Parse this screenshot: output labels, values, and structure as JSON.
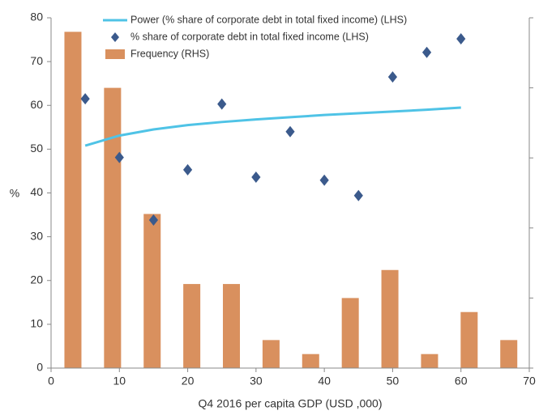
{
  "chart_data": {
    "type": "combo",
    "y_label": "%",
    "x_label": "Q4 2016 per capita GDP (USD ,000)",
    "xlim": [
      0,
      70
    ],
    "xticks": [
      0,
      10,
      20,
      30,
      40,
      50,
      60,
      70
    ],
    "ylim": [
      0,
      80
    ],
    "yticks": [
      0,
      10,
      20,
      30,
      40,
      50,
      60,
      70,
      80
    ],
    "y2lim": [
      0,
      25
    ],
    "y2ticks": [
      0,
      5,
      10,
      15,
      20,
      25
    ],
    "series": [
      {
        "name": "Power (% share of corporate debt in total fixed income) (LHS)",
        "kind": "line",
        "color": "#4fc3e6",
        "x": [
          5,
          10,
          15,
          20,
          25,
          30,
          35,
          40,
          45,
          50,
          55,
          60
        ],
        "values": [
          50.8,
          53.1,
          54.5,
          55.5,
          56.2,
          56.8,
          57.3,
          57.8,
          58.2,
          58.6,
          59.0,
          59.5
        ]
      },
      {
        "name": "% share of corporate debt in total fixed income (LHS)",
        "kind": "scatter",
        "color": "#3b5a8c",
        "x": [
          5,
          10,
          15,
          20,
          25,
          30,
          35,
          40,
          45,
          50,
          55,
          60
        ],
        "values": [
          61.5,
          48.1,
          33.8,
          45.3,
          60.3,
          43.6,
          54.0,
          42.9,
          39.4,
          66.5,
          72.1,
          75.2
        ]
      },
      {
        "name": "Frequency (RHS)",
        "kind": "bar",
        "axis": "y2",
        "color": "#d9905e",
        "x": [
          3.2,
          9.0,
          14.8,
          20.6,
          26.4,
          32.2,
          38.0,
          43.8,
          49.6,
          55.4,
          61.2,
          67.0
        ],
        "values": [
          24,
          20,
          11,
          6,
          6,
          2,
          1,
          5,
          7,
          1,
          4,
          2
        ]
      }
    ]
  }
}
